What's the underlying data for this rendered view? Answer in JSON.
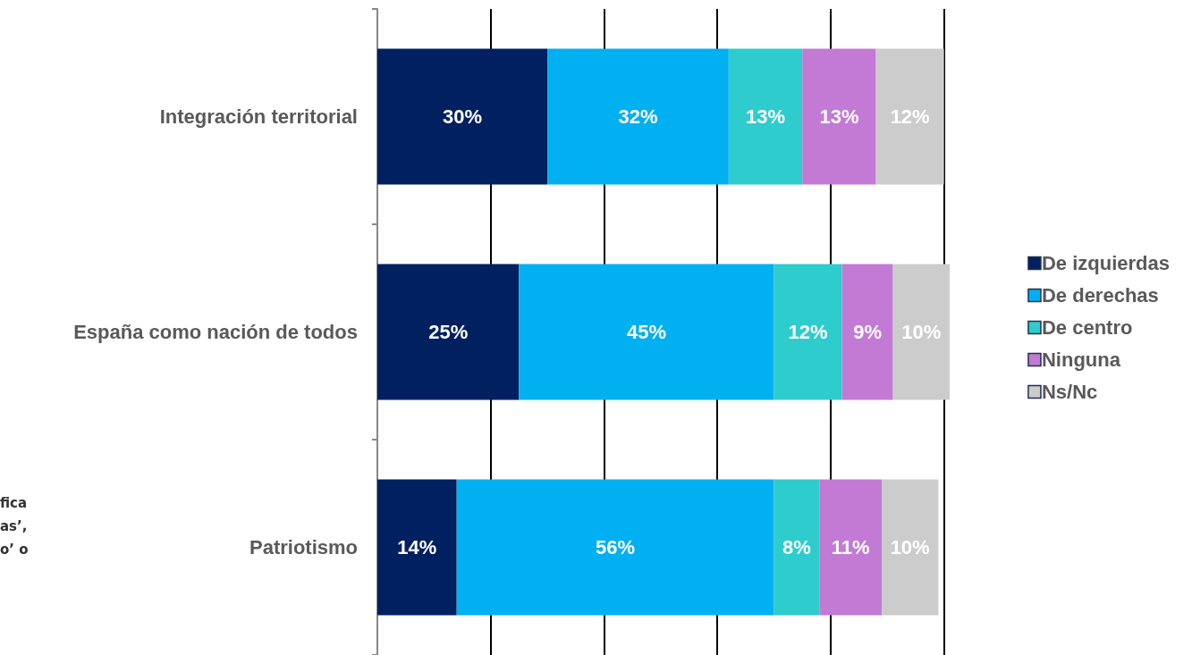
{
  "chart_data": {
    "type": "bar",
    "orientation": "horizontal",
    "stacked": true,
    "categories": [
      "Integración territorial",
      "España como nación de todos",
      "Patriotismo"
    ],
    "series": [
      {
        "name": "De izquierdas",
        "color": "#002060",
        "values": [
          30,
          25,
          14
        ],
        "value_labels": [
          "30%",
          "25%",
          "14%"
        ]
      },
      {
        "name": "De derechas",
        "color": "#00b0f0",
        "values": [
          32,
          45,
          56
        ],
        "value_labels": [
          "32%",
          "45%",
          "56%"
        ]
      },
      {
        "name": "De centro",
        "color": "#2ecccc",
        "values": [
          13,
          12,
          8
        ],
        "value_labels": [
          "13%",
          "12%",
          "8%"
        ]
      },
      {
        "name": "Ninguna",
        "color": "#c27ad4",
        "values": [
          13,
          9,
          11
        ],
        "value_labels": [
          "13%",
          "9%",
          "11%"
        ]
      },
      {
        "name": "Ns/Nc",
        "color": "#cccccc",
        "values": [
          12,
          10,
          10
        ],
        "value_labels": [
          "12%",
          "10%",
          "10%"
        ]
      }
    ],
    "xlim": [
      0,
      101
    ],
    "xticks": [
      {
        "value": 0,
        "label": null
      },
      {
        "value": 20,
        "label": null
      },
      {
        "value": 40,
        "label": null
      },
      {
        "value": 60,
        "label": null
      },
      {
        "value": 80,
        "label": null
      },
      {
        "value": 100,
        "label": null
      }
    ],
    "tick_labels": "y",
    "grid": "x",
    "legend": "right",
    "annotations": [
      "fica",
      "as’,",
      "o’ o"
    ]
  }
}
